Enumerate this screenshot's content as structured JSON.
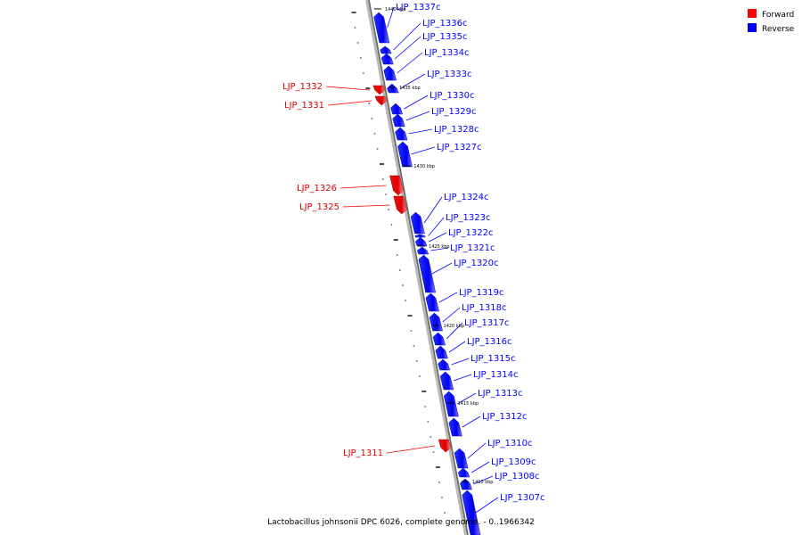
{
  "legend": {
    "items": [
      {
        "label": "Forward",
        "color": "#ff0000"
      },
      {
        "label": "Reverse",
        "color": "#0000ff"
      }
    ]
  },
  "caption": "Lactobacillus johnsonii DPC 6026, complete genome. - 0..1966342",
  "ticks": [
    {
      "label": "1440 kbp",
      "kbp": 1440
    },
    {
      "label": "1435 kbp",
      "kbp": 1435
    },
    {
      "label": "1430 kbp",
      "kbp": 1430
    },
    {
      "label": "1425 kbp",
      "kbp": 1425
    },
    {
      "label": "1420 kbp",
      "kbp": 1420
    },
    {
      "label": "1415 kbp",
      "kbp": 1415
    },
    {
      "label": "1410 kbp",
      "kbp": 1410
    }
  ],
  "genes": [
    {
      "label": "LJP_1337c",
      "strand": "reverse"
    },
    {
      "label": "LJP_1336c",
      "strand": "reverse"
    },
    {
      "label": "LJP_1335c",
      "strand": "reverse"
    },
    {
      "label": "LJP_1334c",
      "strand": "reverse"
    },
    {
      "label": "LJP_1333c",
      "strand": "reverse"
    },
    {
      "label": "LJP_1332",
      "strand": "forward"
    },
    {
      "label": "LJP_1331",
      "strand": "forward"
    },
    {
      "label": "LJP_1330c",
      "strand": "reverse"
    },
    {
      "label": "LJP_1329c",
      "strand": "reverse"
    },
    {
      "label": "LJP_1328c",
      "strand": "reverse"
    },
    {
      "label": "LJP_1327c",
      "strand": "reverse"
    },
    {
      "label": "LJP_1326",
      "strand": "forward"
    },
    {
      "label": "LJP_1325",
      "strand": "forward"
    },
    {
      "label": "LJP_1324c",
      "strand": "reverse"
    },
    {
      "label": "LJP_1323c",
      "strand": "reverse"
    },
    {
      "label": "LJP_1322c",
      "strand": "reverse"
    },
    {
      "label": "LJP_1321c",
      "strand": "reverse"
    },
    {
      "label": "LJP_1320c",
      "strand": "reverse"
    },
    {
      "label": "LJP_1319c",
      "strand": "reverse"
    },
    {
      "label": "LJP_1318c",
      "strand": "reverse"
    },
    {
      "label": "LJP_1317c",
      "strand": "reverse"
    },
    {
      "label": "LJP_1316c",
      "strand": "reverse"
    },
    {
      "label": "LJP_1315c",
      "strand": "reverse"
    },
    {
      "label": "LJP_1314c",
      "strand": "reverse"
    },
    {
      "label": "LJP_1313c",
      "strand": "reverse"
    },
    {
      "label": "LJP_1312c",
      "strand": "reverse"
    },
    {
      "label": "LJP_1311",
      "strand": "forward"
    },
    {
      "label": "LJP_1310c",
      "strand": "reverse"
    },
    {
      "label": "LJP_1309c",
      "strand": "reverse"
    },
    {
      "label": "LJP_1308c",
      "strand": "reverse"
    },
    {
      "label": "LJP_1307c",
      "strand": "reverse"
    }
  ]
}
